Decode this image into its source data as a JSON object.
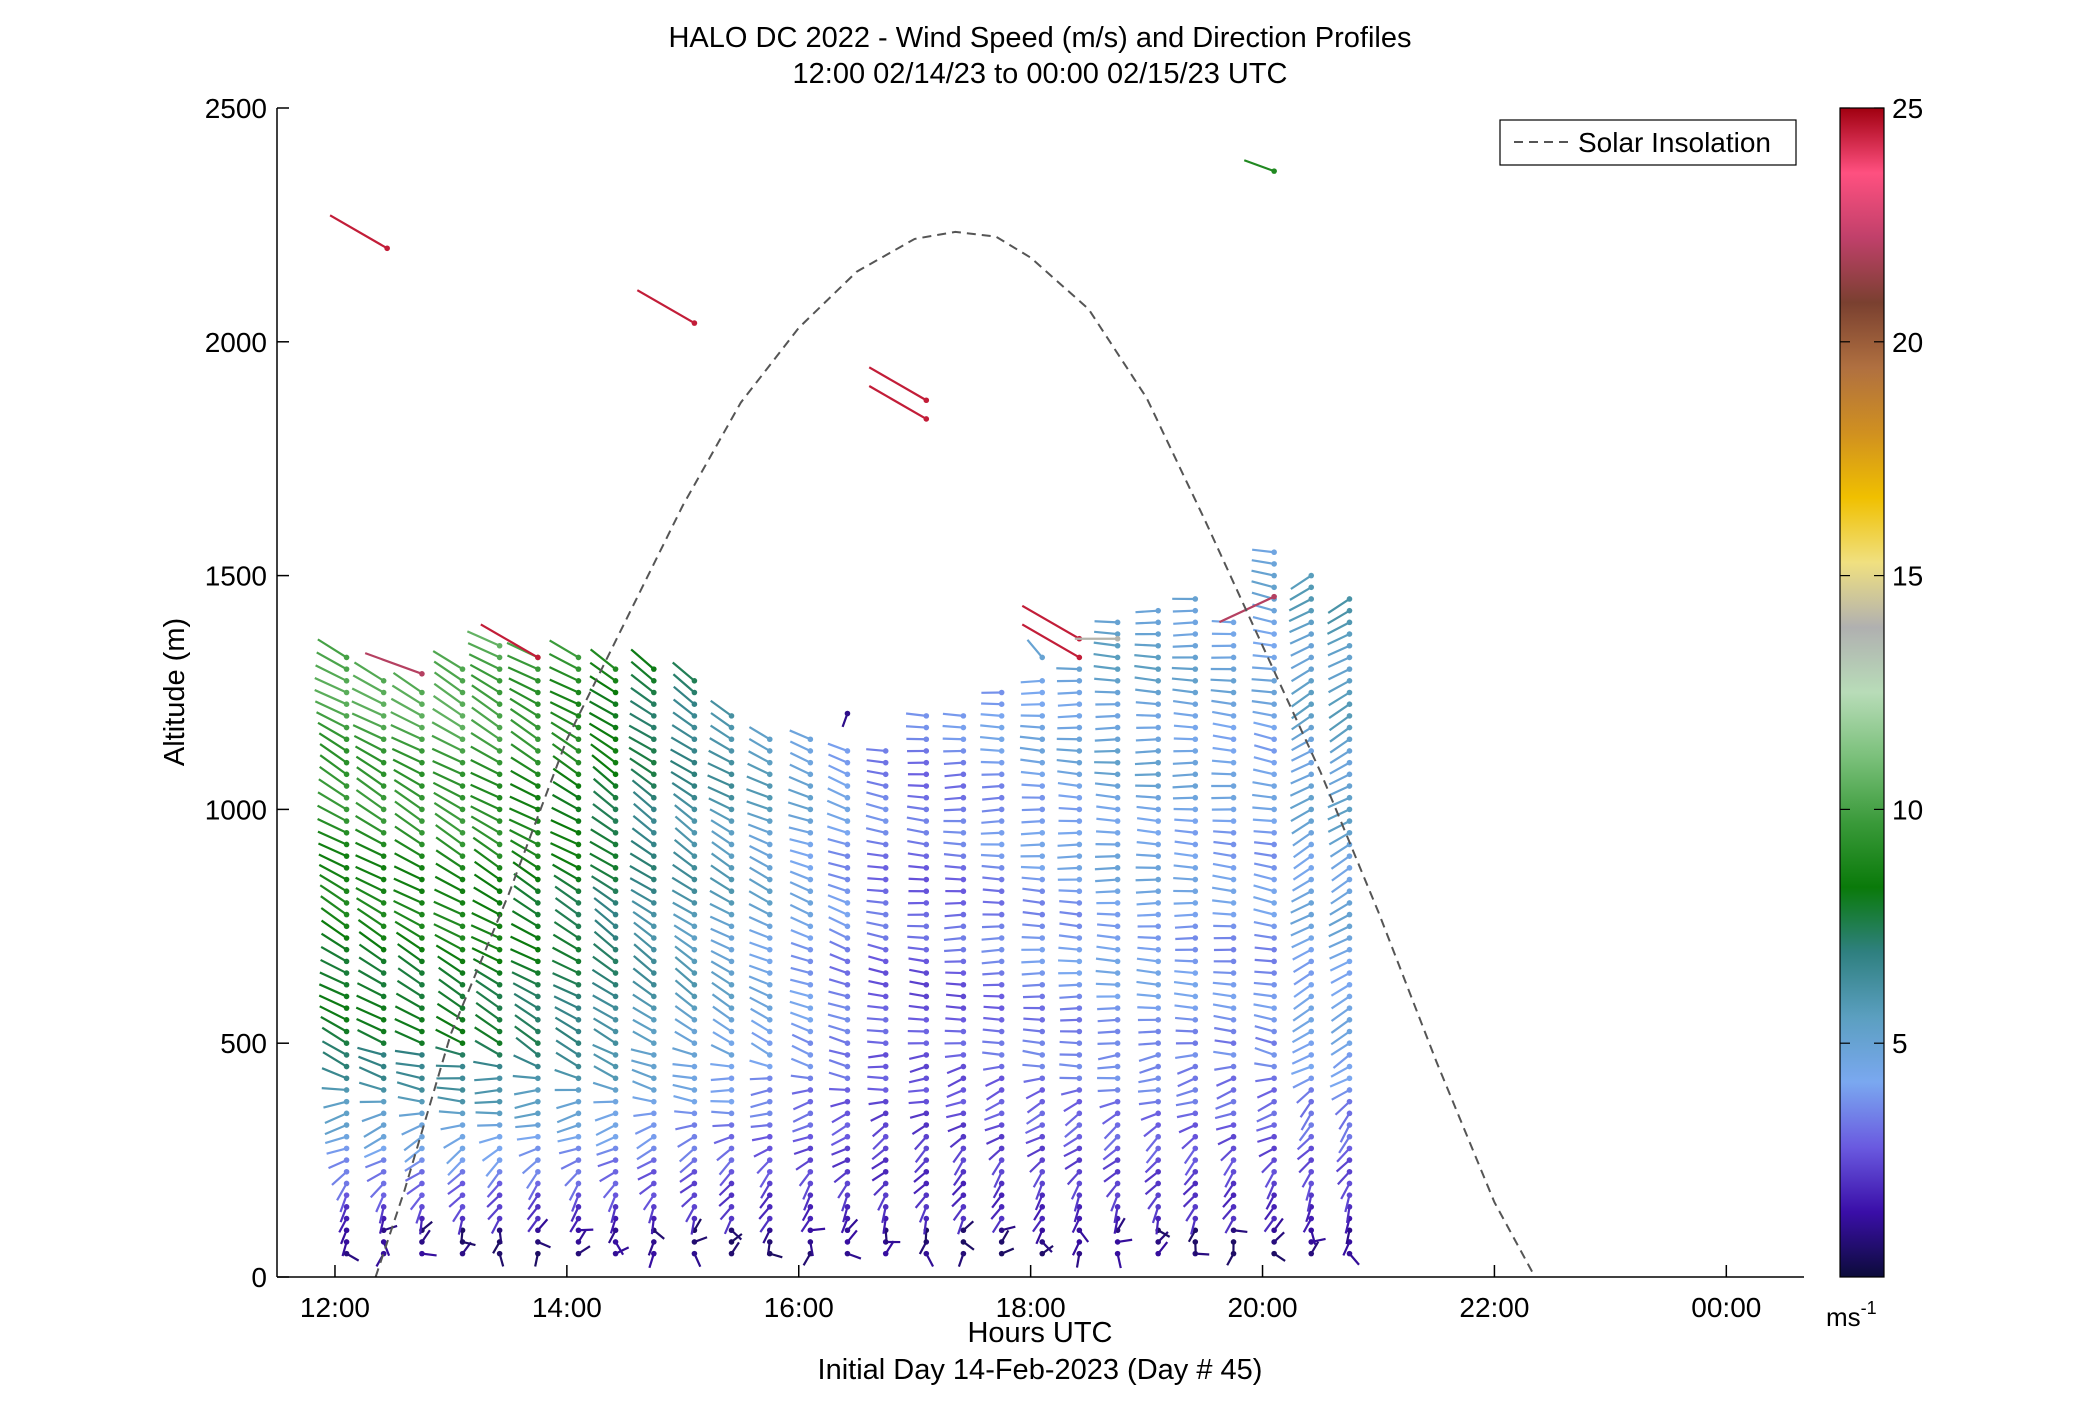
{
  "chart_data": {
    "type": "scatter",
    "title": "HALO DC 2022 - Wind Speed (m/s) and Direction Profiles",
    "subtitle": "12:00 02/14/23 to 00:00 02/15/23  UTC",
    "xlabel": "Hours UTC",
    "xlabel2": "Initial Day 14-Feb-2023 (Day # 45)",
    "ylabel": "Altitude (m)",
    "xlim": [
      11.5,
      24.67
    ],
    "ylim": [
      0,
      2500
    ],
    "x_ticks": [
      12,
      14,
      16,
      18,
      20,
      22,
      24
    ],
    "x_tick_labels": [
      "12:00",
      "14:00",
      "16:00",
      "18:00",
      "20:00",
      "22:00",
      "00:00"
    ],
    "y_ticks": [
      0,
      500,
      1000,
      1500,
      2000,
      2500
    ],
    "y_tick_labels": [
      "0",
      "500",
      "1000",
      "1500",
      "2000",
      "2500"
    ],
    "grid": false,
    "legend": {
      "label": "Solar Insolation",
      "placement": "top-right"
    },
    "colorbar": {
      "min": 0,
      "max": 25,
      "ticks": [
        5,
        10,
        15,
        20,
        25
      ],
      "tick_labels": [
        "5",
        "10",
        "15",
        "20",
        "25"
      ],
      "unit_base": "ms",
      "unit_exp": "-1",
      "colors": [
        "#0c0c3a",
        "#3a0ea8",
        "#6a5ae0",
        "#7aa8f0",
        "#5b9fc0",
        "#2f8080",
        "#0a7a0a",
        "#3a9a3a",
        "#7ac07a",
        "#b8dcb8",
        "#b0b0b0",
        "#f0e080",
        "#f0c000",
        "#d09020",
        "#b07040",
        "#7a4030",
        "#c0406a",
        "#ff5080",
        "#a00010"
      ]
    },
    "solar_insolation": {
      "x": [
        12.35,
        12.6,
        13.0,
        13.5,
        14.0,
        14.5,
        15.0,
        15.5,
        16.0,
        16.5,
        17.0,
        17.35,
        17.7,
        18.0,
        18.5,
        19.0,
        19.5,
        20.0,
        20.5,
        21.0,
        21.5,
        22.0,
        22.35
      ],
      "y": [
        0,
        185,
        520,
        820,
        1150,
        1400,
        1650,
        1870,
        2030,
        2150,
        2220,
        2235,
        2225,
        2180,
        2070,
        1880,
        1620,
        1350,
        1080,
        780,
        460,
        160,
        0
      ]
    },
    "wind_profiles": {
      "times": [
        12.1,
        12.42,
        12.75,
        13.1,
        13.42,
        13.75,
        14.1,
        14.42,
        14.75,
        15.1,
        15.42,
        15.75,
        16.1,
        16.42,
        16.75,
        17.1,
        17.42,
        17.75,
        18.1,
        18.42,
        18.75,
        19.1,
        19.42,
        19.75,
        20.1,
        20.42,
        20.75
      ],
      "alt_step": 25,
      "top_alt": [
        1330,
        1280,
        1270,
        1300,
        1350,
        1340,
        1330,
        1310,
        1300,
        1290,
        1210,
        1160,
        1150,
        1130,
        1130,
        1210,
        1210,
        1250,
        1280,
        1300,
        1400,
        1440,
        1450,
        1420,
        1550,
        1520,
        1460
      ],
      "speed_upper": [
        9,
        9,
        9,
        9.2,
        9,
        8.6,
        8.2,
        7.6,
        6.8,
        6.2,
        5.6,
        5.0,
        4.4,
        3.8,
        3.2,
        3.0,
        3.2,
        3.6,
        4.0,
        4.2,
        4.6,
        4.6,
        4.4,
        4.2,
        4.2,
        4.8,
        5.0
      ],
      "dir_upper": [
        300,
        300,
        300,
        300,
        300,
        300,
        300,
        305,
        305,
        305,
        300,
        295,
        290,
        290,
        280,
        275,
        270,
        270,
        272,
        272,
        272,
        272,
        272,
        275,
        280,
        240,
        240
      ],
      "outliers": [
        {
          "t": 12.45,
          "alt": 2200,
          "speed": 24.5,
          "dir": 300
        },
        {
          "t": 15.1,
          "alt": 2040,
          "speed": 24.5,
          "dir": 300
        },
        {
          "t": 17.1,
          "alt": 1875,
          "speed": 24.5,
          "dir": 300
        },
        {
          "t": 17.1,
          "alt": 1835,
          "speed": 24.5,
          "dir": 300
        },
        {
          "t": 12.75,
          "alt": 1290,
          "speed": 22,
          "dir": 290
        },
        {
          "t": 13.75,
          "alt": 1325,
          "speed": 24.5,
          "dir": 300
        },
        {
          "t": 18.42,
          "alt": 1365,
          "speed": 24.5,
          "dir": 300
        },
        {
          "t": 18.42,
          "alt": 1325,
          "speed": 24.5,
          "dir": 300
        },
        {
          "t": 18.75,
          "alt": 1365,
          "speed": 14,
          "dir": 270
        },
        {
          "t": 20.1,
          "alt": 2365,
          "speed": 9,
          "dir": 290
        },
        {
          "t": 20.1,
          "alt": 1455,
          "speed": 22,
          "dir": 245
        },
        {
          "t": 16.42,
          "alt": 1205,
          "speed": 1,
          "dir": 200
        },
        {
          "t": 18.1,
          "alt": 1325,
          "speed": 5,
          "dir": 320
        }
      ]
    }
  }
}
